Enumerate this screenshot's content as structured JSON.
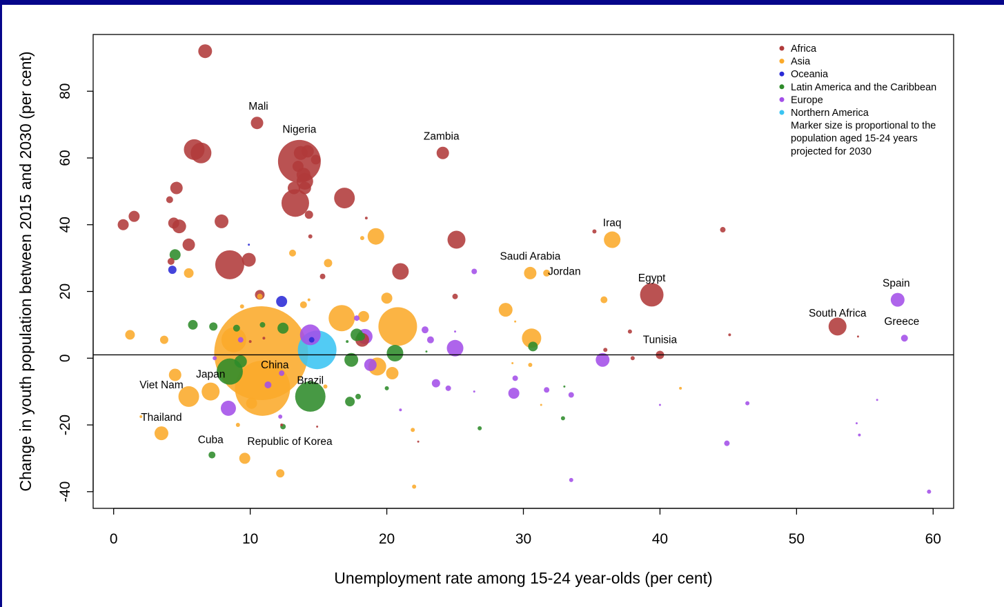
{
  "chart_data": {
    "type": "scatter",
    "xlabel": "Unemployment rate among 15-24 year-olds (per cent)",
    "ylabel": "Change in youth population between 2015 and 2030 (per cent)",
    "xlim": [
      -1.5,
      61.5
    ],
    "ylim": [
      -45,
      97
    ],
    "xticks": [
      "0",
      "10",
      "20",
      "30",
      "40",
      "50",
      "60"
    ],
    "yticks": [
      "-40",
      "-20",
      "0",
      "20",
      "40",
      "60",
      "80"
    ],
    "reference_line_y": 1,
    "grid": false,
    "legend_position": "top-right",
    "legend_note": [
      "Marker size is proportional to the",
      "population aged 15-24 years",
      "projected for 2030"
    ],
    "series": [
      {
        "name": "Africa",
        "color": "#b03a3a",
        "points": [
          [
            6.7,
            92,
            10
          ],
          [
            10.5,
            70.5,
            9
          ],
          [
            24.1,
            61.5,
            9
          ],
          [
            5.9,
            62.5,
            15
          ],
          [
            6.4,
            61.5,
            15
          ],
          [
            13.6,
            59,
            31
          ],
          [
            13.7,
            61.5,
            10
          ],
          [
            14.2,
            62,
            9
          ],
          [
            14.8,
            59.5,
            7
          ],
          [
            13.9,
            55,
            10
          ],
          [
            13.5,
            57.5,
            8
          ],
          [
            14.0,
            53,
            12
          ],
          [
            13.2,
            51,
            9
          ],
          [
            13.3,
            46.5,
            20
          ],
          [
            14.0,
            51,
            9
          ],
          [
            14.3,
            43,
            6
          ],
          [
            4.6,
            51,
            9
          ],
          [
            4.1,
            47.5,
            5
          ],
          [
            0.7,
            40,
            8
          ],
          [
            1.5,
            42.5,
            8
          ],
          [
            4.4,
            40.5,
            8
          ],
          [
            4.8,
            39.5,
            10
          ],
          [
            7.9,
            41,
            10
          ],
          [
            16.9,
            48,
            15
          ],
          [
            18.5,
            42,
            2
          ],
          [
            5.5,
            34,
            9
          ],
          [
            8.5,
            28,
            21
          ],
          [
            9.9,
            29.5,
            10
          ],
          [
            4.2,
            29,
            5
          ],
          [
            14.4,
            36.5,
            3
          ],
          [
            25.1,
            35.5,
            13
          ],
          [
            35.2,
            38,
            3
          ],
          [
            44.6,
            38.5,
            4
          ],
          [
            21.0,
            26,
            12
          ],
          [
            15.3,
            24.5,
            4
          ],
          [
            10.7,
            19,
            7
          ],
          [
            25.0,
            18.5,
            4
          ],
          [
            39.4,
            19,
            17
          ],
          [
            53.0,
            9.5,
            13
          ],
          [
            37.8,
            8,
            3
          ],
          [
            45.1,
            7,
            2
          ],
          [
            54.5,
            6.5,
            1.5
          ],
          [
            36.0,
            2.5,
            3
          ],
          [
            38.0,
            0,
            3
          ],
          [
            40.0,
            1,
            6
          ],
          [
            12.3,
            -20,
            2
          ],
          [
            14.9,
            -20.5,
            1.5
          ],
          [
            22.3,
            -25,
            1.5
          ],
          [
            18.2,
            5.5,
            10
          ],
          [
            10.0,
            5,
            2
          ],
          [
            11.0,
            6,
            2
          ]
        ]
      },
      {
        "name": "Asia",
        "color": "#fbaa2a",
        "points": [
          [
            10.8,
            1.5,
            68
          ],
          [
            10.9,
            -9,
            40
          ],
          [
            8.8,
            5.5,
            18
          ],
          [
            19.2,
            36.5,
            12
          ],
          [
            18.2,
            36,
            3
          ],
          [
            13.1,
            31.5,
            5
          ],
          [
            15.7,
            28.5,
            6
          ],
          [
            30.5,
            25.5,
            9
          ],
          [
            31.7,
            25.5,
            5
          ],
          [
            36.5,
            35.5,
            12
          ],
          [
            5.5,
            25.5,
            7
          ],
          [
            20.0,
            18,
            8
          ],
          [
            28.7,
            14.5,
            10
          ],
          [
            35.9,
            17.5,
            5
          ],
          [
            16.7,
            12,
            19
          ],
          [
            18.3,
            12.5,
            8
          ],
          [
            20.8,
            9.5,
            28
          ],
          [
            30.6,
            6,
            14
          ],
          [
            29.4,
            11,
            1.5
          ],
          [
            1.2,
            7,
            7
          ],
          [
            3.7,
            5.5,
            6
          ],
          [
            9.4,
            15.5,
            3
          ],
          [
            10.7,
            18.5,
            4
          ],
          [
            13.9,
            16,
            5
          ],
          [
            14.3,
            17.5,
            2
          ],
          [
            19.3,
            -2.5,
            13
          ],
          [
            20.4,
            -4.5,
            9
          ],
          [
            4.5,
            -5,
            9
          ],
          [
            5.5,
            -11.5,
            15
          ],
          [
            7.1,
            -10,
            13
          ],
          [
            3.5,
            -22.5,
            10
          ],
          [
            9.6,
            -30,
            8
          ],
          [
            12.2,
            -34.5,
            6
          ],
          [
            10.1,
            -13.5,
            8
          ],
          [
            21.9,
            -21.5,
            3
          ],
          [
            22.0,
            -38.5,
            3
          ],
          [
            15.5,
            -8.5,
            3
          ],
          [
            41.5,
            -9,
            2
          ],
          [
            30.5,
            -2,
            3
          ],
          [
            9.1,
            -20,
            3
          ],
          [
            31.3,
            -14,
            1.5
          ],
          [
            29.2,
            -1.5,
            1.5
          ],
          [
            2.0,
            -17.5,
            2
          ]
        ]
      },
      {
        "name": "Oceania",
        "color": "#2a2ad6",
        "points": [
          [
            4.3,
            26.5,
            6
          ],
          [
            12.3,
            17,
            8
          ],
          [
            14.5,
            5.5,
            4
          ],
          [
            9.9,
            34,
            1.5
          ]
        ]
      },
      {
        "name": "Latin America and the Caribbean",
        "color": "#2e8b2a",
        "points": [
          [
            14.4,
            -11.5,
            22
          ],
          [
            8.5,
            -4,
            19
          ],
          [
            17.4,
            -0.5,
            10
          ],
          [
            9.3,
            -1,
            9
          ],
          [
            20.6,
            1.5,
            12
          ],
          [
            17.8,
            7,
            9
          ],
          [
            18.1,
            6.5,
            6
          ],
          [
            30.7,
            3.5,
            7
          ],
          [
            12.4,
            9,
            8
          ],
          [
            4.5,
            31,
            8
          ],
          [
            5.8,
            10,
            7
          ],
          [
            7.3,
            9.5,
            6
          ],
          [
            9.0,
            9,
            5
          ],
          [
            10.9,
            10,
            4
          ],
          [
            17.3,
            -13,
            7
          ],
          [
            17.9,
            -11.5,
            4
          ],
          [
            20.0,
            -9,
            3
          ],
          [
            12.4,
            -20.5,
            4
          ],
          [
            7.2,
            -29,
            5
          ],
          [
            26.8,
            -21,
            3
          ],
          [
            32.9,
            -18,
            3
          ],
          [
            33.0,
            -8.5,
            1.5
          ],
          [
            22.9,
            2,
            1.5
          ],
          [
            17.1,
            5,
            2
          ]
        ]
      },
      {
        "name": "Europe",
        "color": "#a34fe8",
        "points": [
          [
            14.4,
            7,
            15
          ],
          [
            18.4,
            6.5,
            11
          ],
          [
            25.0,
            3,
            12
          ],
          [
            18.8,
            -2,
            9
          ],
          [
            35.8,
            -0.5,
            10
          ],
          [
            57.4,
            17.5,
            10
          ],
          [
            57.9,
            6,
            5
          ],
          [
            8.4,
            -15,
            11
          ],
          [
            29.3,
            -10.5,
            8
          ],
          [
            23.6,
            -7.5,
            6
          ],
          [
            24.5,
            -9,
            4
          ],
          [
            29.4,
            -6,
            4
          ],
          [
            31.7,
            -9.5,
            4
          ],
          [
            33.5,
            -11,
            4
          ],
          [
            12.3,
            -4.5,
            4
          ],
          [
            11.3,
            -8,
            5
          ],
          [
            9.3,
            5.5,
            4
          ],
          [
            7.4,
            0,
            3
          ],
          [
            17.8,
            12,
            4
          ],
          [
            23.2,
            5.5,
            5
          ],
          [
            22.8,
            8.5,
            5
          ],
          [
            26.4,
            26,
            4
          ],
          [
            44.9,
            -25.5,
            4
          ],
          [
            46.4,
            -13.5,
            3
          ],
          [
            33.5,
            -36.5,
            3
          ],
          [
            59.7,
            -40,
            3
          ],
          [
            54.6,
            -23,
            2
          ],
          [
            21.0,
            -15.5,
            2
          ],
          [
            12.2,
            -17.5,
            3
          ],
          [
            25.0,
            8,
            1.5
          ],
          [
            55.9,
            -12.5,
            1.5
          ],
          [
            54.4,
            -19.5,
            1.5
          ],
          [
            40.0,
            -14,
            1.5
          ],
          [
            26.4,
            -10,
            1.5
          ]
        ]
      },
      {
        "name": "Northern America",
        "color": "#3ac4f2",
        "points": [
          [
            14.9,
            2.5,
            28
          ]
        ]
      }
    ],
    "annotations": [
      {
        "text": "Mali",
        "x": 10.6,
        "y": 74.5
      },
      {
        "text": "Nigeria",
        "x": 13.6,
        "y": 67.5
      },
      {
        "text": "Zambia",
        "x": 24.0,
        "y": 65.5
      },
      {
        "text": "Iraq",
        "x": 36.5,
        "y": 39.5
      },
      {
        "text": "Saudi Arabia",
        "x": 30.5,
        "y": 29.5
      },
      {
        "text": "Jordan",
        "x": 33.0,
        "y": 25
      },
      {
        "text": "Egypt",
        "x": 39.4,
        "y": 23
      },
      {
        "text": "Spain",
        "x": 57.3,
        "y": 21.5
      },
      {
        "text": "South Africa",
        "x": 53.0,
        "y": 12.5
      },
      {
        "text": "Greece",
        "x": 57.7,
        "y": 10
      },
      {
        "text": "Tunisia",
        "x": 40.0,
        "y": 4.5
      },
      {
        "text": "China",
        "x": 11.8,
        "y": -3
      },
      {
        "text": "Japan",
        "x": 7.1,
        "y": -5.8
      },
      {
        "text": "Brazil",
        "x": 14.4,
        "y": -7.7
      },
      {
        "text": "Viet Nam",
        "x": 3.5,
        "y": -9
      },
      {
        "text": "Thailand",
        "x": 3.5,
        "y": -18.7
      },
      {
        "text": "Cuba",
        "x": 7.1,
        "y": -25.5
      },
      {
        "text": "Republic of Korea",
        "x": 12.9,
        "y": -26
      }
    ]
  }
}
